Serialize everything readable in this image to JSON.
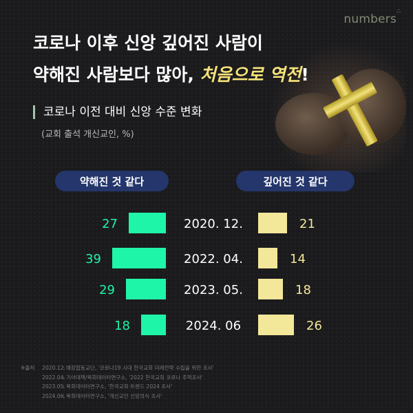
{
  "brand": {
    "logo": "numbers"
  },
  "headline": {
    "line1": "코로나 이후 신앙 깊어진 사람이",
    "line2_prefix": "약해진 사람보다 많아, ",
    "line2_highlight": "처음으로 역전",
    "line2_suffix": "!"
  },
  "section": {
    "title": "코로나 이전 대비 신앙 수준 변화",
    "caption": "(교회 출석 개신교인, %)"
  },
  "colors": {
    "weaker": "#1ff5a8",
    "deeper": "#f3e79a",
    "pill_bg": "#24366b",
    "accent_text": "#f7e47a"
  },
  "chart_data": {
    "type": "bar",
    "orientation": "horizontal-diverging",
    "categories": [
      "2020. 12.",
      "2022. 04.",
      "2023. 05.",
      "2024. 06"
    ],
    "series": [
      {
        "name": "약해진 것 같다",
        "values": [
          27,
          39,
          29,
          18
        ]
      },
      {
        "name": "깊어진 것 같다",
        "values": [
          21,
          14,
          18,
          26
        ]
      }
    ],
    "unit": "%"
  },
  "footnotes": {
    "label": "※출처",
    "items": [
      {
        "date": "2020.12.",
        "text": ": 예장합동교단, '코로나19 시대 한국교회 미래전략 수립을 위한 조사'"
      },
      {
        "date": "2022.04.",
        "text": ": 기아대책/목회데이터연구소, '2022 한국교회 코로나 추적조사'"
      },
      {
        "date": "2023.05.",
        "text": ": 목회데이터연구소, '한국교회 트렌드 2024 조사'"
      },
      {
        "date": "2024.06.",
        "text": ": 목회데이터연구소, '개신교인 신앙의식 조사'"
      }
    ]
  }
}
